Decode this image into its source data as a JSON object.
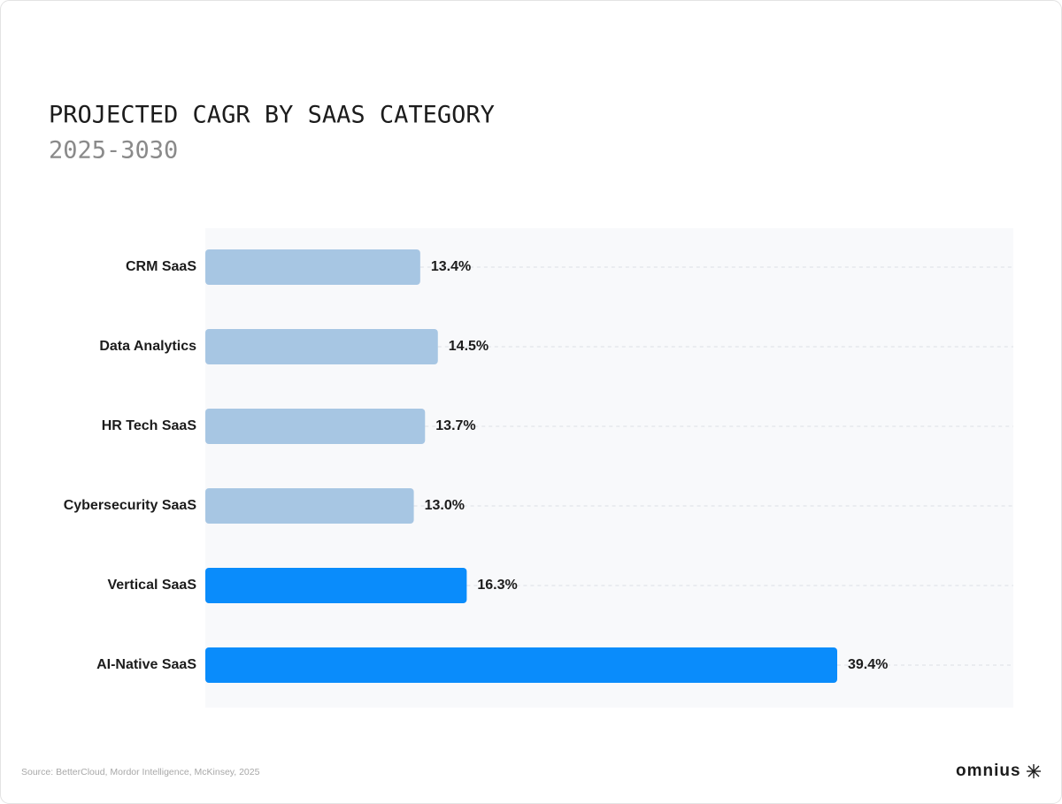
{
  "chart_data": {
    "type": "bar",
    "orientation": "horizontal",
    "title": "PROJECTED CAGR BY SAAS CATEGORY",
    "subtitle": "2025-3030",
    "categories": [
      "CRM SaaS",
      "Data Analytics",
      "HR Tech SaaS",
      "Cybersecurity SaaS",
      "Vertical SaaS",
      "AI-Native SaaS"
    ],
    "values": [
      13.4,
      14.5,
      13.7,
      13.0,
      16.3,
      39.4
    ],
    "value_labels": [
      "13.4%",
      "14.5%",
      "13.7%",
      "13.0%",
      "16.3%",
      "39.4%"
    ],
    "colors": [
      "#a7c6e3",
      "#a7c6e3",
      "#a7c6e3",
      "#a7c6e3",
      "#0a8cfb",
      "#0a8cfb"
    ],
    "source": "Source: BetterCloud, Mordor Intelligence, McKinsey, 2025",
    "brand": "omnius"
  }
}
